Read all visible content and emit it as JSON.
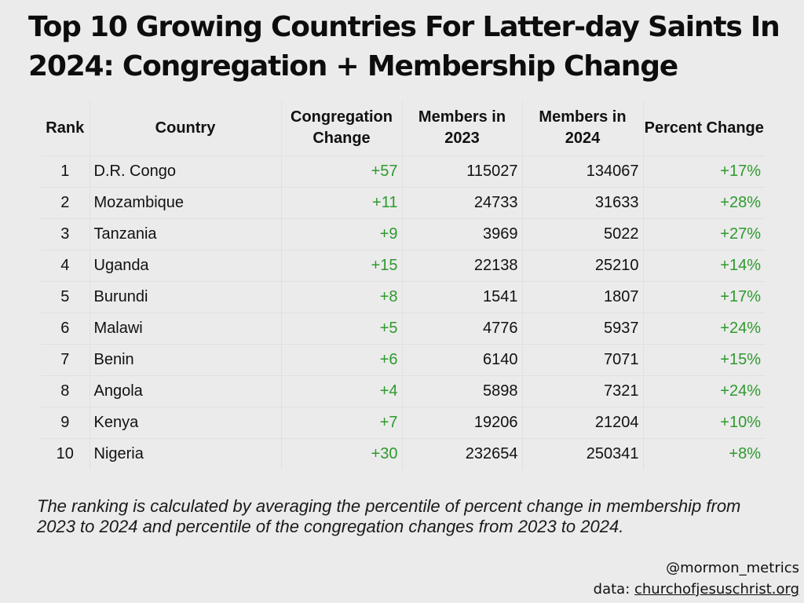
{
  "title": "Top 10 Growing Countries For Latter-day Saints In 2024: Congregation + Membership Change",
  "table": {
    "headers": [
      "Rank",
      "Country",
      "Congregation Change",
      "Members in 2023",
      "Members in 2024",
      "Percent Change"
    ],
    "rows": [
      [
        "1",
        "D.R. Congo",
        "+57",
        "115027",
        "134067",
        "+17%"
      ],
      [
        "2",
        "Mozambique",
        "+11",
        "24733",
        "31633",
        "+28%"
      ],
      [
        "3",
        "Tanzania",
        "+9",
        "3969",
        "5022",
        "+27%"
      ],
      [
        "4",
        "Uganda",
        "+15",
        "22138",
        "25210",
        "+14%"
      ],
      [
        "5",
        "Burundi",
        "+8",
        "1541",
        "1807",
        "+17%"
      ],
      [
        "6",
        "Malawi",
        "+5",
        "4776",
        "5937",
        "+24%"
      ],
      [
        "7",
        "Benin",
        "+6",
        "6140",
        "7071",
        "+15%"
      ],
      [
        "8",
        "Angola",
        "+4",
        "5898",
        "7321",
        "+24%"
      ],
      [
        "9",
        "Kenya",
        "+7",
        "19206",
        "21204",
        "+10%"
      ],
      [
        "10",
        "Nigeria",
        "+30",
        "232654",
        "250341",
        "+8%"
      ]
    ]
  },
  "note": "The ranking is calculated by averaging the percentile of percent change in membership from 2023 to 2024 and percentile of the congregation changes from 2023 to 2024.",
  "credit": {
    "handle": "@mormon_metrics",
    "source_prefix": "data: ",
    "source": "churchofjesuschrist.org"
  },
  "colors": {
    "background": "#ebebeb",
    "positive_change": "#2e9a2e",
    "text": "#111111"
  },
  "chart_data": {
    "type": "table",
    "title": "Top 10 Growing Countries For Latter-day Saints In 2024: Congregation + Membership Change",
    "columns": [
      "Rank",
      "Country",
      "Congregation Change",
      "Members in 2023",
      "Members in 2024",
      "Percent Change"
    ],
    "rows": [
      [
        1,
        "D.R. Congo",
        57,
        115027,
        134067,
        17
      ],
      [
        2,
        "Mozambique",
        11,
        24733,
        31633,
        28
      ],
      [
        3,
        "Tanzania",
        9,
        3969,
        5022,
        27
      ],
      [
        4,
        "Uganda",
        15,
        22138,
        25210,
        14
      ],
      [
        5,
        "Burundi",
        8,
        1541,
        1807,
        17
      ],
      [
        6,
        "Malawi",
        5,
        4776,
        5937,
        24
      ],
      [
        7,
        "Benin",
        6,
        6140,
        7071,
        15
      ],
      [
        8,
        "Angola",
        4,
        5898,
        7321,
        24
      ],
      [
        9,
        "Kenya",
        7,
        19206,
        21204,
        10
      ],
      [
        10,
        "Nigeria",
        30,
        232654,
        250341,
        8
      ]
    ]
  }
}
